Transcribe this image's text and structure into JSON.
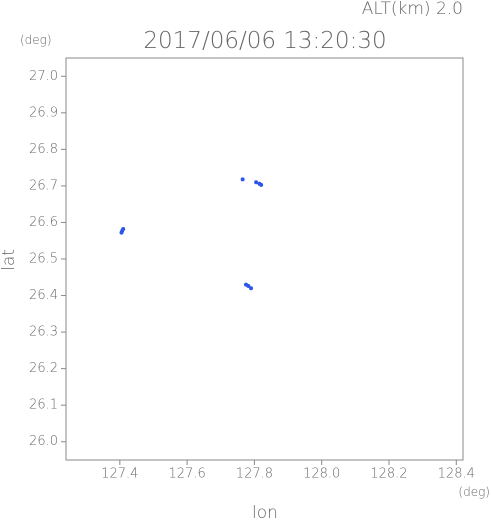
{
  "chart_data": {
    "type": "scatter",
    "title": "2017/06/06 13:20:30",
    "subtitle": "ALT(km) 2.0",
    "y_unit": "(deg)",
    "x_unit": "(deg)",
    "xlabel": "lon",
    "ylabel": "lat",
    "xlim": [
      127.24,
      128.42
    ],
    "ylim": [
      25.95,
      27.05
    ],
    "xticks": [
      127.4,
      127.6,
      127.8,
      {
        "value": 128.0,
        "label": "128.0"
      },
      128.2,
      128.4
    ],
    "yticks": [
      {
        "value": 26.0,
        "label": "26.0"
      },
      26.1,
      26.2,
      26.3,
      26.4,
      26.5,
      26.6,
      26.7,
      26.8,
      26.9,
      {
        "value": 27.0,
        "label": "27.0"
      }
    ],
    "color": "#2f55e8",
    "x": [
      127.405,
      127.407,
      127.41,
      127.765,
      127.805,
      127.815,
      127.82,
      127.775,
      127.782,
      127.79
    ],
    "values": [
      26.572,
      26.577,
      26.582,
      26.718,
      26.71,
      26.706,
      26.703,
      26.43,
      26.426,
      26.42
    ]
  }
}
